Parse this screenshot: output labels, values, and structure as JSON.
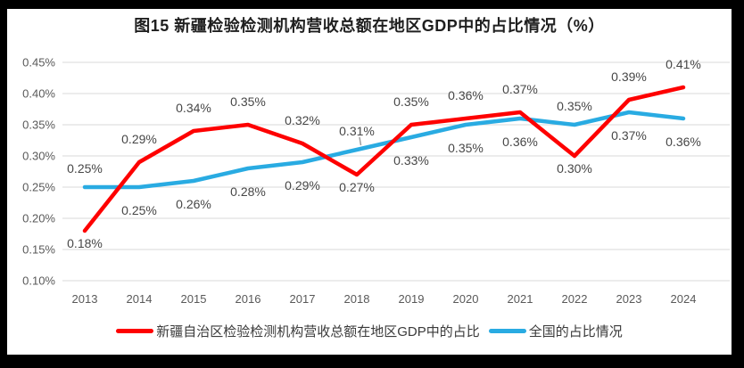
{
  "title": "图15 新疆检验检测机构营收总额在地区GDP中的占比情况（%）",
  "chart_data": {
    "type": "line",
    "title": "图15 新疆检验检测机构营收总额在地区GDP中的占比情况（%）",
    "categories": [
      "2013",
      "2014",
      "2015",
      "2016",
      "2017",
      "2018",
      "2019",
      "2020",
      "2021",
      "2022",
      "2023",
      "2024"
    ],
    "series": [
      {
        "name": "新疆自治区检验检测机构营收总额在地区GDP中的占比",
        "color": "#fe0000",
        "values": [
          0.18,
          0.29,
          0.34,
          0.35,
          0.32,
          0.27,
          0.35,
          0.36,
          0.37,
          0.3,
          0.39,
          0.41
        ],
        "data_labels": [
          "0.18%",
          "0.29%",
          "0.34%",
          "0.35%",
          "0.32%",
          "0.27%",
          "0.35%",
          "0.36%",
          "0.37%",
          "0.30%",
          "0.39%",
          "0.41%"
        ],
        "label_positions": [
          "below",
          "above",
          "above",
          "above",
          "above",
          "below",
          "above",
          "above",
          "above",
          "below",
          "above",
          "above"
        ]
      },
      {
        "name": "全国的占比情况",
        "color": "#29abe2",
        "values": [
          0.25,
          0.25,
          0.26,
          0.28,
          0.29,
          0.31,
          0.33,
          0.35,
          0.36,
          0.35,
          0.37,
          0.36
        ],
        "data_labels": [
          "0.25%",
          "0.25%",
          "0.26%",
          "0.28%",
          "0.29%",
          "0.31%",
          "0.33%",
          "0.35%",
          "0.36%",
          "0.35%",
          "0.37%",
          "0.36%"
        ],
        "label_positions": [
          "above",
          "below",
          "below",
          "below",
          "below",
          "above",
          "below",
          "below",
          "below",
          "above",
          "below",
          "below"
        ],
        "leader_line_indices": [
          5
        ]
      }
    ],
    "y_axis": {
      "min": 0.1,
      "max": 0.45,
      "step": 0.05,
      "tick_labels": [
        "0.45%",
        "0.40%",
        "0.35%",
        "0.30%",
        "0.25%",
        "0.20%",
        "0.15%",
        "0.10%"
      ],
      "unit": "%"
    },
    "x_axis": {
      "tick_labels": [
        "2013",
        "2014",
        "2015",
        "2016",
        "2017",
        "2018",
        "2019",
        "2020",
        "2021",
        "2022",
        "2023",
        "2024"
      ]
    },
    "grid": true,
    "legend_position": "bottom",
    "colors": {
      "grid": "#d9d9d9",
      "tick_text": "#595959",
      "data_label_text": "#474747",
      "leader_line": "#9e9e9e",
      "title_text": "#1f1f1f",
      "frame": "#000000",
      "panel": "#ffffff"
    }
  }
}
